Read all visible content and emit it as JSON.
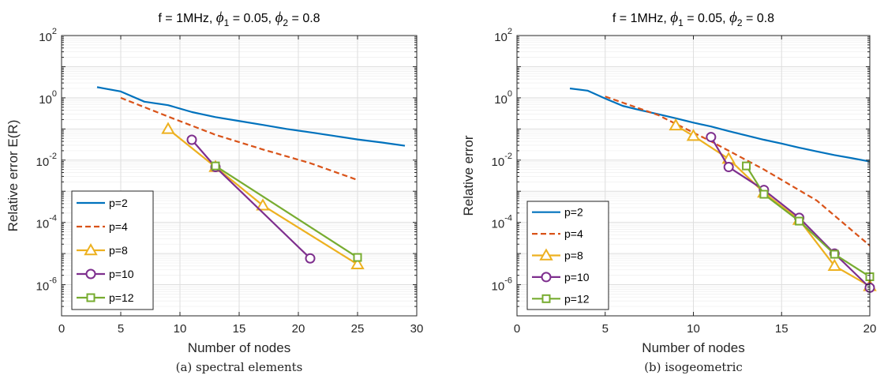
{
  "chart_data": [
    {
      "type": "line",
      "title": "f = 1MHz, ϕ_1 = 0.05, ϕ_2 = 0.8",
      "title_parts": {
        "prefix": "f = 1MHz, ",
        "phi": "ϕ",
        "sub1": "1",
        "mid": " = 0.05, ",
        "sub2": "2",
        "suffix": " = 0.8"
      },
      "caption": "(a) spectral elements",
      "xlabel": "Number of nodes",
      "ylabel": "Relative error E(R)",
      "xlim": [
        0,
        30
      ],
      "ylim": [
        1e-07,
        100
      ],
      "yscale": "log",
      "xticks": [
        0,
        5,
        10,
        15,
        20,
        25,
        30
      ],
      "yticks": [
        {
          "base": "10",
          "exp": "-6",
          "value": 1e-06
        },
        {
          "base": "10",
          "exp": "-4",
          "value": 0.0001
        },
        {
          "base": "10",
          "exp": "-2",
          "value": 0.01
        },
        {
          "base": "10",
          "exp": "0",
          "value": 1
        },
        {
          "base": "10",
          "exp": "2",
          "value": 100
        }
      ],
      "grid": true,
      "legend_position": "bottom-left",
      "series": [
        {
          "name": "p=2",
          "color": "#0072BD",
          "style": "solid",
          "marker": "none",
          "x": [
            3,
            5,
            7,
            9,
            11,
            13,
            15,
            17,
            19,
            21,
            23,
            25,
            27,
            29
          ],
          "y": [
            2.2,
            1.6,
            0.75,
            0.58,
            0.35,
            0.24,
            0.18,
            0.135,
            0.1,
            0.078,
            0.06,
            0.046,
            0.037,
            0.029
          ]
        },
        {
          "name": "p=4",
          "color": "#D95319",
          "style": "dashed",
          "marker": "none",
          "x": [
            5,
            9,
            13,
            17,
            21,
            25
          ],
          "y": [
            1.0,
            0.25,
            0.065,
            0.022,
            0.008,
            0.0023
          ]
        },
        {
          "name": "p=8",
          "color": "#EDB120",
          "style": "solid",
          "marker": "triangle",
          "x": [
            9,
            13,
            17,
            25
          ],
          "y": [
            0.1,
            0.006,
            0.00035,
            4.5e-06
          ]
        },
        {
          "name": "p=10",
          "color": "#7E2F8E",
          "style": "solid",
          "marker": "circle",
          "x": [
            11,
            13,
            21
          ],
          "y": [
            0.045,
            0.006,
            7e-06
          ]
        },
        {
          "name": "p=12",
          "color": "#77AC30",
          "style": "solid",
          "marker": "square",
          "x": [
            13,
            25
          ],
          "y": [
            0.0065,
            7.5e-06
          ]
        }
      ]
    },
    {
      "type": "line",
      "title": "f = 1MHz, ϕ_1 = 0.05, ϕ_2 = 0.8",
      "title_parts": {
        "prefix": "f = 1MHz, ",
        "phi": "ϕ",
        "sub1": "1",
        "mid": " = 0.05, ",
        "sub2": "2",
        "suffix": " = 0.8"
      },
      "caption": "(b) isogeometric",
      "xlabel": "Number of nodes",
      "ylabel": "Relative error",
      "xlim": [
        0,
        20
      ],
      "ylim": [
        1e-07,
        100
      ],
      "yscale": "log",
      "xticks": [
        0,
        5,
        10,
        15,
        20
      ],
      "yticks": [
        {
          "base": "10",
          "exp": "-6",
          "value": 1e-06
        },
        {
          "base": "10",
          "exp": "-4",
          "value": 0.0001
        },
        {
          "base": "10",
          "exp": "-2",
          "value": 0.01
        },
        {
          "base": "10",
          "exp": "0",
          "value": 1
        },
        {
          "base": "10",
          "exp": "2",
          "value": 100
        }
      ],
      "grid": true,
      "legend_position": "bottom-left",
      "series": [
        {
          "name": "p=2",
          "color": "#0072BD",
          "style": "solid",
          "marker": "none",
          "x": [
            3,
            4,
            5,
            6,
            7,
            8,
            9,
            10,
            11,
            12,
            13,
            14,
            15,
            16,
            17,
            18,
            19,
            20
          ],
          "y": [
            2.0,
            1.7,
            0.95,
            0.55,
            0.4,
            0.3,
            0.22,
            0.16,
            0.12,
            0.085,
            0.062,
            0.045,
            0.034,
            0.025,
            0.019,
            0.0145,
            0.0115,
            0.009
          ]
        },
        {
          "name": "p=4",
          "color": "#D95319",
          "style": "dashed",
          "marker": "none",
          "x": [
            5,
            8,
            11,
            14,
            17,
            20
          ],
          "y": [
            1.1,
            0.28,
            0.04,
            0.005,
            0.0005,
            1.8e-05
          ]
        },
        {
          "name": "p=8",
          "color": "#EDB120",
          "style": "solid",
          "marker": "triangle",
          "x": [
            9,
            10,
            12,
            14,
            16,
            18,
            20
          ],
          "y": [
            0.13,
            0.06,
            0.011,
            0.0009,
            0.00012,
            4e-06,
            9e-07
          ]
        },
        {
          "name": "p=10",
          "color": "#7E2F8E",
          "style": "solid",
          "marker": "circle",
          "x": [
            11,
            12,
            14,
            16,
            18,
            20
          ],
          "y": [
            0.055,
            0.006,
            0.0011,
            0.00014,
            1e-05,
            8e-07
          ]
        },
        {
          "name": "p=12",
          "color": "#77AC30",
          "style": "solid",
          "marker": "square",
          "x": [
            13,
            14,
            16,
            18,
            20
          ],
          "y": [
            0.0065,
            0.0008,
            0.00011,
            9.5e-06,
            1.8e-06
          ]
        }
      ]
    }
  ]
}
